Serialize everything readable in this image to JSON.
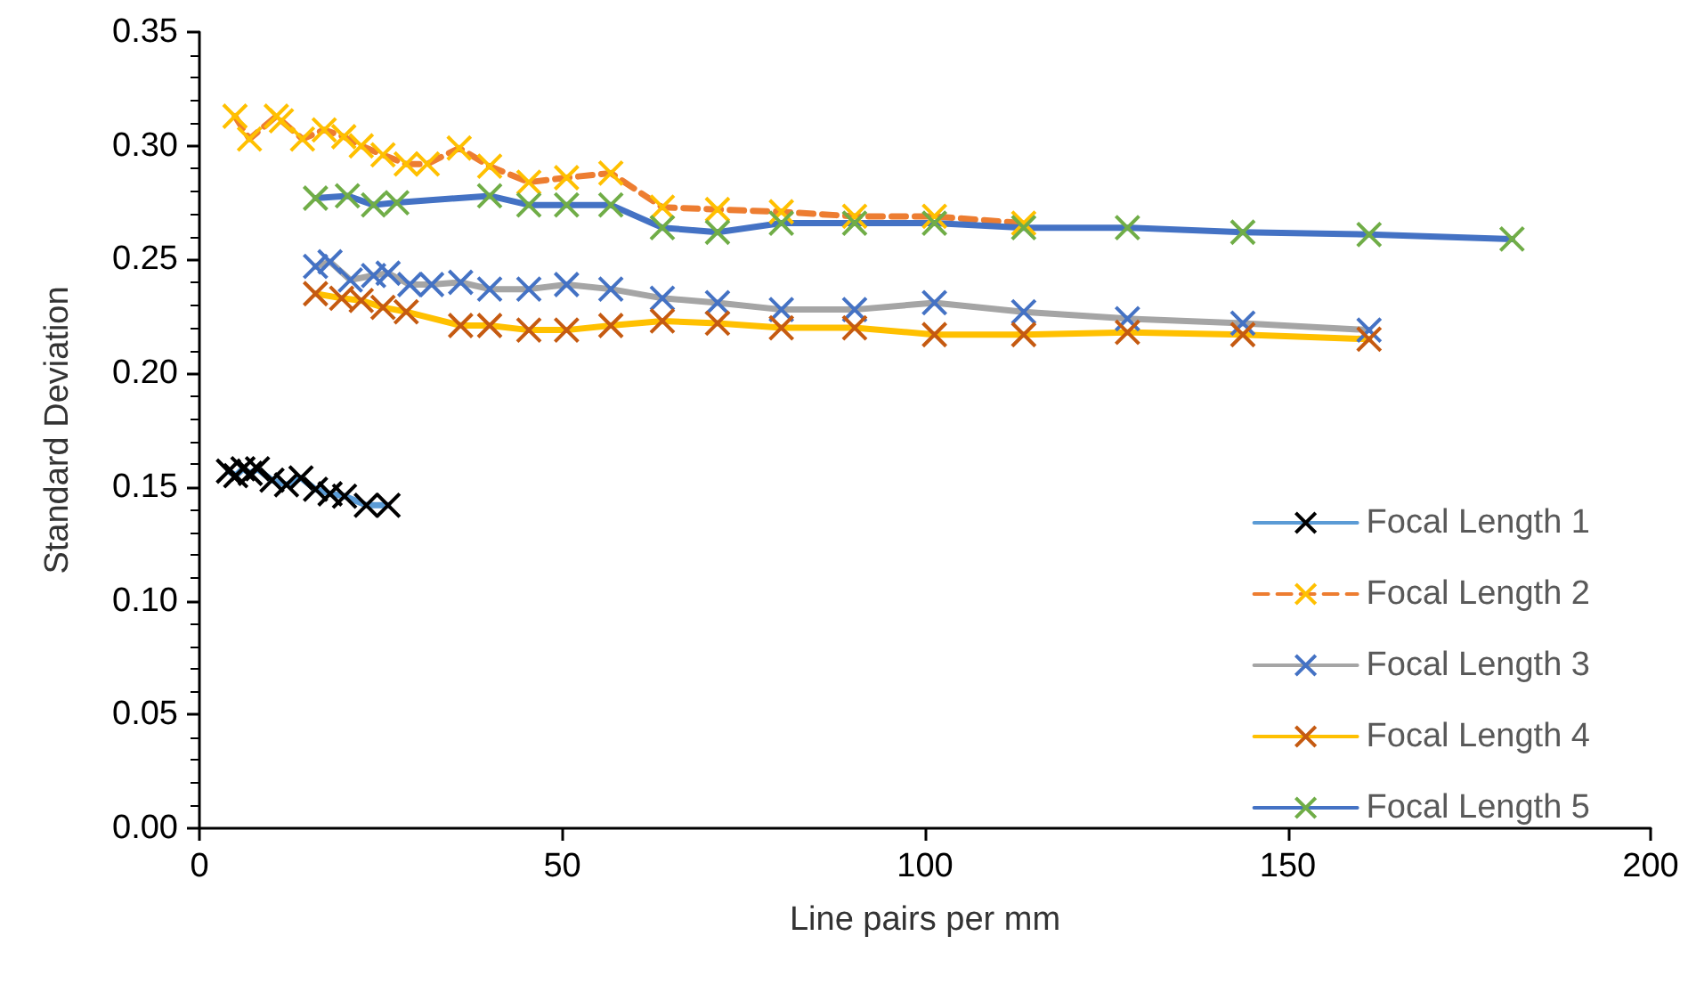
{
  "chart_data": {
    "type": "line",
    "xlabel": "Line pairs per mm",
    "ylabel": "Standard Deviation",
    "xlim": [
      0,
      200
    ],
    "xticks": [
      0,
      50,
      100,
      150,
      200
    ],
    "ylim": [
      0,
      0.35
    ],
    "yticks": [
      {
        "value": 0,
        "label": "0.00"
      },
      {
        "value": 0.05,
        "label": "0.05"
      },
      {
        "value": 0.1,
        "label": "0.10"
      },
      {
        "value": 0.15,
        "label": "0.15"
      },
      {
        "value": 0.2,
        "label": "0.20"
      },
      {
        "value": 0.25,
        "label": "0.25"
      },
      {
        "value": 0.3,
        "label": "0.30"
      },
      {
        "value": 0.35,
        "label": "0.35"
      }
    ],
    "grid": false,
    "legend": "bottom right",
    "marker": "cross",
    "series": [
      {
        "name": "Focal Length 1",
        "color": "#5b9bd5",
        "line_style": "solid",
        "x": [
          4,
          5,
          6,
          7,
          8,
          10,
          12,
          14,
          16,
          18,
          20,
          23,
          26
        ],
        "values": [
          0.157,
          0.155,
          0.158,
          0.156,
          0.158,
          0.153,
          0.151,
          0.154,
          0.149,
          0.147,
          0.146,
          0.142,
          0.142
        ],
        "colors": [
          "#000000",
          "#000000",
          "#000000",
          "#000000",
          "#000000",
          "#000000",
          "#000000",
          "#000000",
          "#000000",
          "#000000",
          "#000000",
          "#000000",
          "#000000"
        ]
      },
      {
        "name": "Focal Length 2",
        "color": "#ed7d31",
        "line_style": "dashed",
        "x": [
          4.9,
          6.9,
          10.6,
          11.3,
          14.2,
          17.2,
          19.9,
          22.3,
          25.3,
          28.5,
          31.4,
          35.8,
          40,
          45.4,
          50.6,
          56.7,
          63.8,
          71.4,
          80.2,
          90.3,
          101.3,
          113.6
        ],
        "values": [
          0.313,
          0.303,
          0.313,
          0.311,
          0.303,
          0.307,
          0.304,
          0.3,
          0.296,
          0.292,
          0.292,
          0.299,
          0.291,
          0.284,
          0.286,
          0.288,
          0.273,
          0.272,
          0.271,
          0.269,
          0.269,
          0.266
        ],
        "colors": [
          "#ffc000",
          "#ffc000",
          "#ffc000",
          "#ffc000",
          "#ffc000",
          "#ffc000",
          "#ffc000",
          "#ffc000",
          "#ffc000",
          "#ffc000",
          "#ffc000",
          "#ffc000",
          "#ffc000",
          "#ffc000",
          "#ffc000",
          "#ffc000",
          "#ffc000",
          "#ffc000",
          "#ffc000",
          "#ffc000",
          "#ffc000",
          "#ffc000"
        ]
      },
      {
        "name": "Focal Length 3",
        "color": "#a5a5a5",
        "line_style": "solid",
        "x": [
          16,
          18,
          20.8,
          24,
          26,
          29,
          32,
          36,
          40,
          45.4,
          50.6,
          56.7,
          63.8,
          71.4,
          80.2,
          90.3,
          101.3,
          113.6,
          127.9,
          143.8,
          161.2
        ],
        "values": [
          0.247,
          0.249,
          0.241,
          0.243,
          0.244,
          0.239,
          0.239,
          0.24,
          0.237,
          0.237,
          0.239,
          0.237,
          0.233,
          0.231,
          0.228,
          0.228,
          0.231,
          0.227,
          0.224,
          0.222,
          0.219
        ],
        "colors": [
          "#4472c4",
          "#4472c4",
          "#4472c4",
          "#4472c4",
          "#4472c4",
          "#4472c4",
          "#4472c4",
          "#4472c4",
          "#4472c4",
          "#4472c4",
          "#4472c4",
          "#4472c4",
          "#4472c4",
          "#4472c4",
          "#4472c4",
          "#4472c4",
          "#4472c4",
          "#4472c4",
          "#4472c4",
          "#4472c4",
          "#4472c4"
        ]
      },
      {
        "name": "Focal Length 4",
        "color": "#ffc000",
        "line_style": "solid",
        "x": [
          16,
          19.6,
          22.3,
          25.3,
          28.5,
          36,
          40,
          45.4,
          50.6,
          56.7,
          63.8,
          71.4,
          80.2,
          90.3,
          101.3,
          113.6,
          127.9,
          143.8,
          161.2
        ],
        "values": [
          0.235,
          0.233,
          0.232,
          0.229,
          0.227,
          0.221,
          0.221,
          0.219,
          0.219,
          0.221,
          0.223,
          0.222,
          0.22,
          0.22,
          0.217,
          0.217,
          0.218,
          0.217,
          0.215
        ],
        "colors": [
          "#c55a11",
          "#c55a11",
          "#c55a11",
          "#c55a11",
          "#c55a11",
          "#c55a11",
          "#c55a11",
          "#c55a11",
          "#c55a11",
          "#c55a11",
          "#c55a11",
          "#c55a11",
          "#c55a11",
          "#c55a11",
          "#c55a11",
          "#c55a11",
          "#c55a11",
          "#c55a11",
          "#c55a11"
        ]
      },
      {
        "name": "Focal Length 5",
        "color": "#4472c4",
        "line_style": "solid",
        "x": [
          16,
          20.4,
          24,
          27.2,
          40,
          45.4,
          50.6,
          56.7,
          63.8,
          71.4,
          80.2,
          90.3,
          101.3,
          113.6,
          127.9,
          143.8,
          161.2,
          180.9
        ],
        "values": [
          0.277,
          0.278,
          0.274,
          0.275,
          0.278,
          0.274,
          0.274,
          0.274,
          0.264,
          0.262,
          0.266,
          0.266,
          0.266,
          0.264,
          0.264,
          0.262,
          0.261,
          0.259
        ],
        "colors": [
          "#70ad47",
          "#70ad47",
          "#70ad47",
          "#70ad47",
          "#70ad47",
          "#70ad47",
          "#70ad47",
          "#70ad47",
          "#70ad47",
          "#70ad47",
          "#70ad47",
          "#70ad47",
          "#70ad47",
          "#70ad47",
          "#70ad47",
          "#70ad47",
          "#70ad47",
          "#70ad47"
        ]
      }
    ]
  }
}
